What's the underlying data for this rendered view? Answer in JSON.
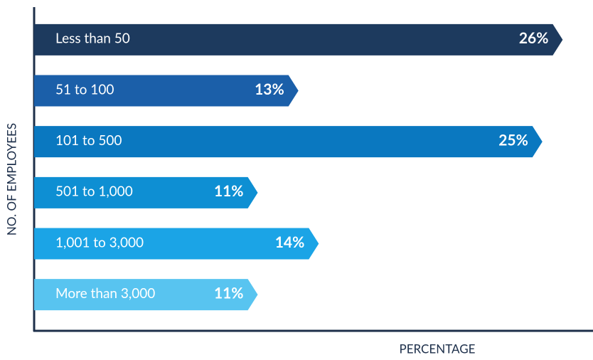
{
  "chart_data": {
    "type": "bar",
    "orientation": "horizontal",
    "xlabel": "PERCENTAGE",
    "ylabel": "NO. OF EMPLOYEES",
    "categories": [
      "Less than 50",
      "51 to 100",
      "101 to 500",
      "501 to 1,000",
      "1,001 to 3,000",
      "More than 3,000"
    ],
    "values": [
      26,
      13,
      25,
      11,
      14,
      11
    ],
    "value_labels": [
      "26%",
      "13%",
      "25%",
      "11%",
      "14%",
      "11%"
    ],
    "colors": [
      "#1d3a5e",
      "#1b5fa9",
      "#0a78c0",
      "#0e8fd3",
      "#1ba4e6",
      "#58c4f0"
    ],
    "xlim": [
      0,
      27
    ]
  }
}
